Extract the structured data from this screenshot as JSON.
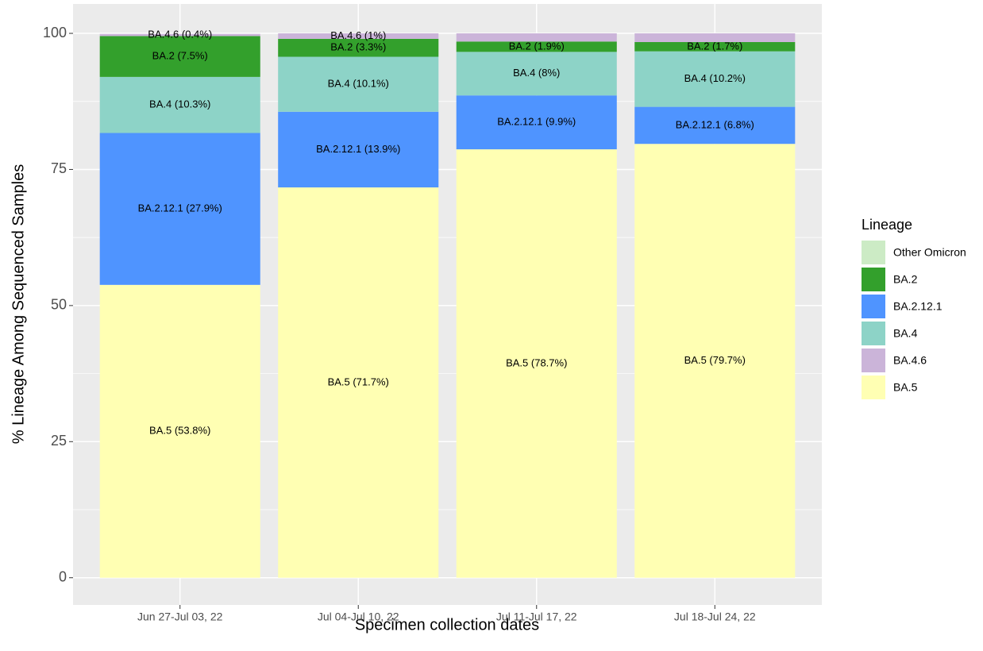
{
  "chart_data": {
    "type": "stacked_bar",
    "x_label": "Specimen collection dates",
    "y_label": "% Lineage Among Sequenced Samples",
    "legend_title": "Lineage",
    "legend_position": "right",
    "grid": true,
    "categories": [
      "Jun 27-Jul 03, 22",
      "Jul 04-Jul 10, 22",
      "Jul 11-Jul 17, 22",
      "Jul 18-Jul 24, 22"
    ],
    "ylim": [
      -5,
      105.4
    ],
    "yticks": [
      0,
      25,
      50,
      75,
      100
    ],
    "series": [
      {
        "name": "Other Omicron",
        "color": "#ccebc5",
        "values": [
          0,
          0,
          0,
          0
        ],
        "value_labels": [
          null,
          null,
          null,
          null
        ]
      },
      {
        "name": "BA.2",
        "color": "#33a02c",
        "values": [
          7.5,
          3.3,
          1.9,
          1.7
        ],
        "value_labels": [
          "BA.2 (7.5%)",
          "BA.2 (3.3%)",
          "BA.2 (1.9%)",
          "BA.2 (1.7%)"
        ]
      },
      {
        "name": "BA.2.12.1",
        "color": "#4f94ff",
        "values": [
          27.9,
          13.9,
          9.9,
          6.8
        ],
        "value_labels": [
          "BA.2.12.1 (27.9%)",
          "BA.2.12.1 (13.9%)",
          "BA.2.12.1 (9.9%)",
          "BA.2.12.1 (6.8%)"
        ]
      },
      {
        "name": "BA.4",
        "color": "#8dd3c7",
        "values": [
          10.3,
          10.1,
          8,
          10.2
        ],
        "value_labels": [
          "BA.4 (10.3%)",
          "BA.4 (10.1%)",
          "BA.4 (8%)",
          "BA.4 (10.2%)"
        ]
      },
      {
        "name": "BA.4.6",
        "color": "#cbb4d9",
        "values": [
          0.4,
          1,
          1.5,
          1.6
        ],
        "value_labels": [
          "BA.4.6 (0.4%)",
          "BA.4.6 (1%)",
          null,
          null
        ]
      },
      {
        "name": "BA.5",
        "color": "#ffffb3",
        "values": [
          53.8,
          71.7,
          78.7,
          79.7
        ],
        "value_labels": [
          "BA.5 (53.8%)",
          "BA.5 (71.7%)",
          "BA.5 (78.7%)",
          "BA.5 (79.7%)"
        ]
      }
    ]
  }
}
